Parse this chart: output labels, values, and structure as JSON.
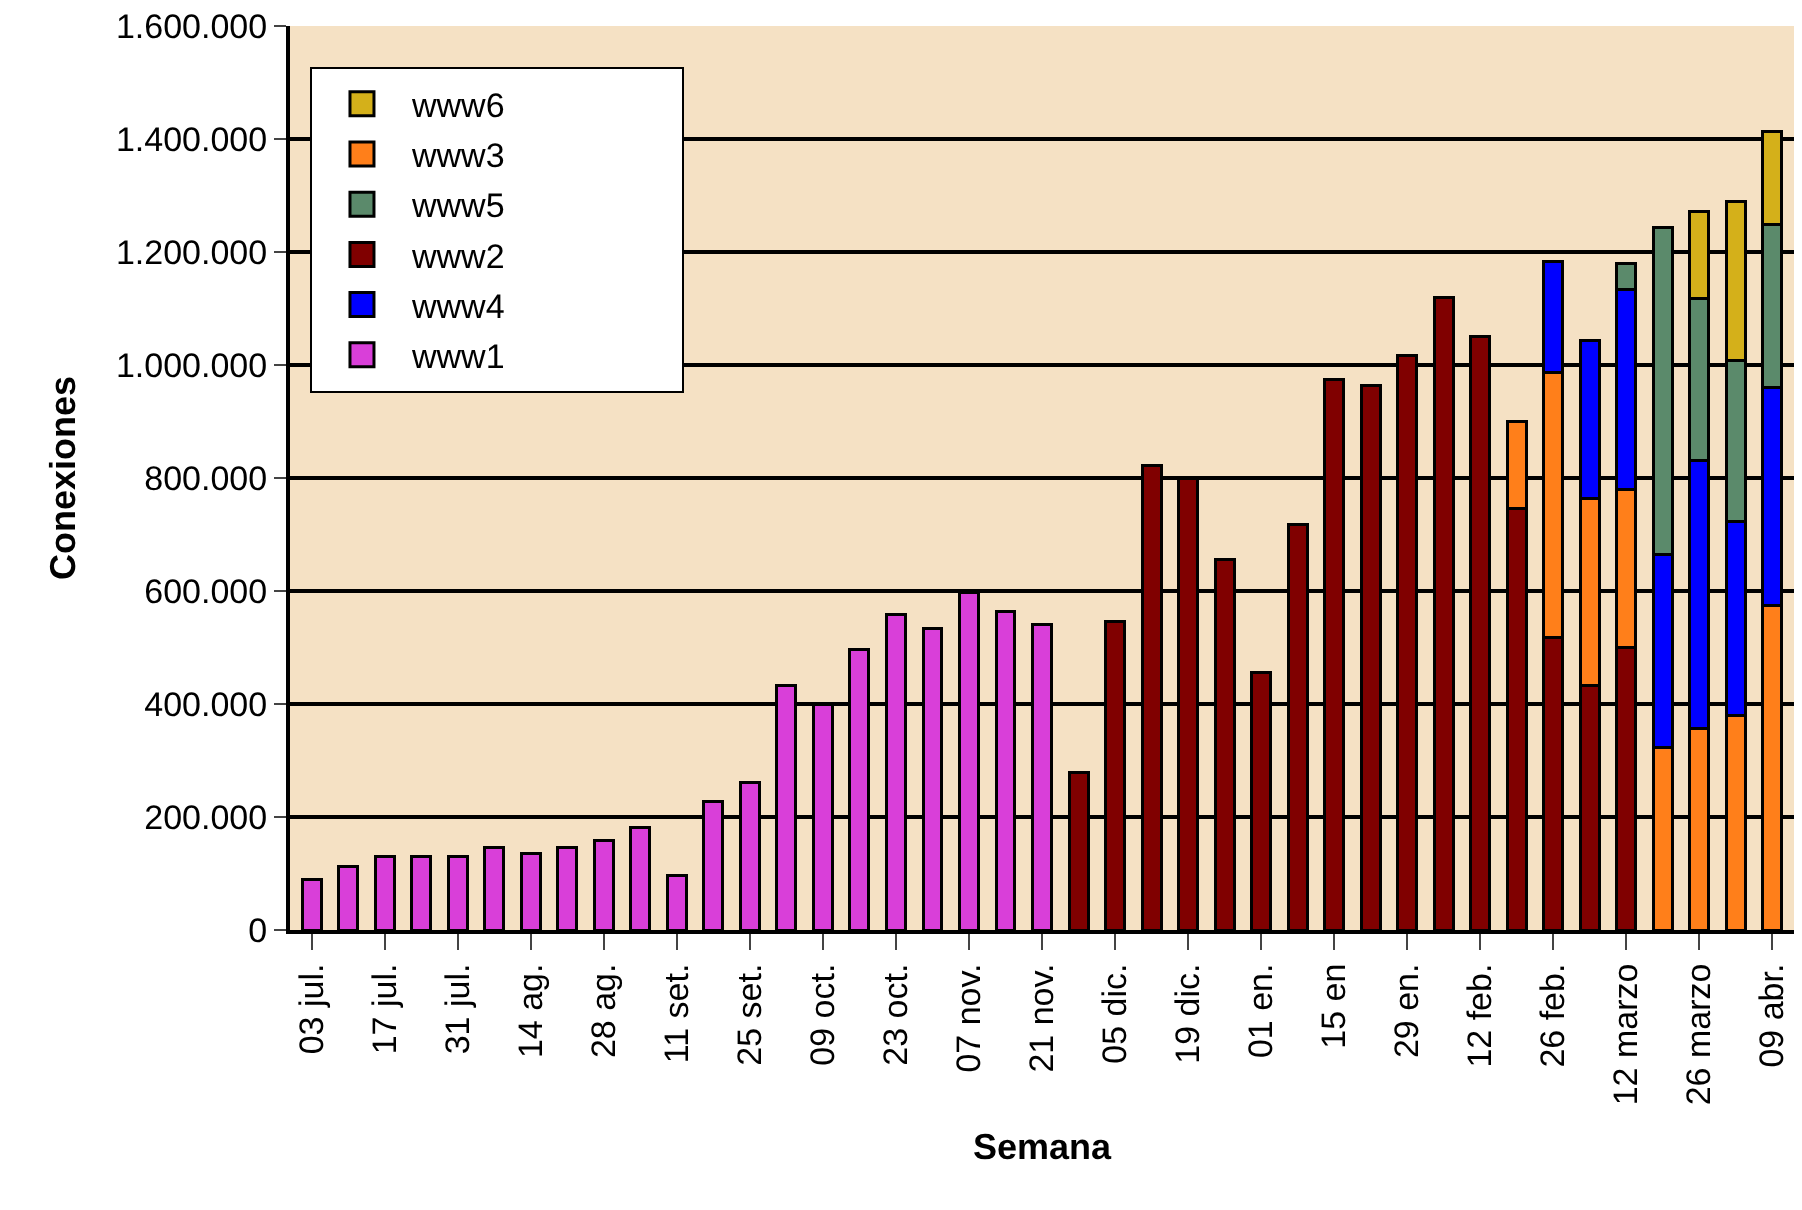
{
  "chart_data": {
    "type": "bar",
    "stacked": true,
    "xlabel": "Semana",
    "ylabel": "Conexiones",
    "categories": [
      "03 jul.",
      null,
      "17 jul.",
      null,
      "31 jul.",
      null,
      "14 ag.",
      null,
      "28 ag.",
      null,
      "11 set.",
      null,
      "25 set.",
      null,
      "09 oct.",
      null,
      "23 oct.",
      null,
      "07 nov.",
      null,
      "21 nov.",
      null,
      "05 dic.",
      null,
      "19 dic.",
      null,
      "01 en.",
      null,
      "15 en",
      null,
      "29 en.",
      null,
      "12 feb.",
      null,
      "26 feb.",
      null,
      "12 marzo",
      null,
      "26 marzo",
      null,
      "09 abr."
    ],
    "series": [
      {
        "name": "www1",
        "color": "#d93fd9",
        "values": [
          90000,
          112000,
          130000,
          130000,
          130000,
          146000,
          135000,
          146000,
          158000,
          181000,
          96000,
          227000,
          261000,
          432000,
          400000,
          496000,
          559000,
          534000,
          597000,
          563000,
          541000,
          null,
          null,
          null,
          null,
          null,
          null,
          null,
          null,
          null,
          null,
          null,
          null,
          null,
          null,
          null,
          null,
          null,
          null,
          null,
          null
        ]
      },
      {
        "name": "www2",
        "color": "#800000",
        "values": [
          null,
          null,
          null,
          null,
          null,
          null,
          null,
          null,
          null,
          null,
          null,
          null,
          null,
          null,
          null,
          null,
          null,
          null,
          null,
          null,
          null,
          278000,
          546000,
          822000,
          799000,
          656000,
          456000,
          718000,
          974000,
          963000,
          1016000,
          1119000,
          1051000,
          746000,
          518000,
          433000,
          500000,
          null,
          null,
          null,
          null
        ]
      },
      {
        "name": "www3",
        "color": "#ff7f1a",
        "values": [
          null,
          null,
          null,
          null,
          null,
          null,
          null,
          null,
          null,
          null,
          null,
          null,
          null,
          null,
          null,
          null,
          null,
          null,
          null,
          null,
          null,
          null,
          null,
          null,
          null,
          null,
          null,
          null,
          null,
          null,
          null,
          null,
          null,
          154000,
          468000,
          330000,
          280000,
          323000,
          356000,
          380000,
          574000
        ]
      },
      {
        "name": "www4",
        "color": "#0000ff",
        "values": [
          null,
          null,
          null,
          null,
          null,
          null,
          null,
          null,
          null,
          null,
          null,
          null,
          null,
          null,
          null,
          null,
          null,
          null,
          null,
          null,
          null,
          null,
          null,
          null,
          null,
          null,
          null,
          null,
          null,
          null,
          null,
          null,
          null,
          null,
          198000,
          280000,
          354000,
          342000,
          475000,
          343000,
          387000
        ]
      },
      {
        "name": "www5",
        "color": "#5b8a6b",
        "values": [
          null,
          null,
          null,
          null,
          null,
          null,
          null,
          null,
          null,
          null,
          null,
          null,
          null,
          null,
          null,
          null,
          null,
          null,
          null,
          null,
          null,
          null,
          null,
          null,
          null,
          null,
          null,
          null,
          null,
          null,
          null,
          null,
          null,
          null,
          null,
          null,
          46000,
          578000,
          286000,
          285000,
          287000
        ]
      },
      {
        "name": "www6",
        "color": "#d4b01a",
        "values": [
          null,
          null,
          null,
          null,
          null,
          null,
          null,
          null,
          null,
          null,
          null,
          null,
          null,
          null,
          null,
          null,
          null,
          null,
          null,
          null,
          null,
          null,
          null,
          null,
          null,
          null,
          null,
          null,
          null,
          null,
          null,
          null,
          null,
          null,
          null,
          null,
          null,
          null,
          154000,
          281000,
          166000
        ]
      }
    ],
    "ylim": [
      0,
      1600000
    ],
    "yticks": [
      {
        "value": 0,
        "label": "0"
      },
      {
        "value": 200000,
        "label": "200.000"
      },
      {
        "value": 400000,
        "label": "400.000"
      },
      {
        "value": 600000,
        "label": "600.000"
      },
      {
        "value": 800000,
        "label": "800.000"
      },
      {
        "value": 1000000,
        "label": "1.000.000"
      },
      {
        "value": 1200000,
        "label": "1.200.000"
      },
      {
        "value": 1400000,
        "label": "1.400.000"
      },
      {
        "value": 1600000,
        "label": "1.600.000"
      }
    ],
    "grid": "y",
    "legend": "top left"
  }
}
